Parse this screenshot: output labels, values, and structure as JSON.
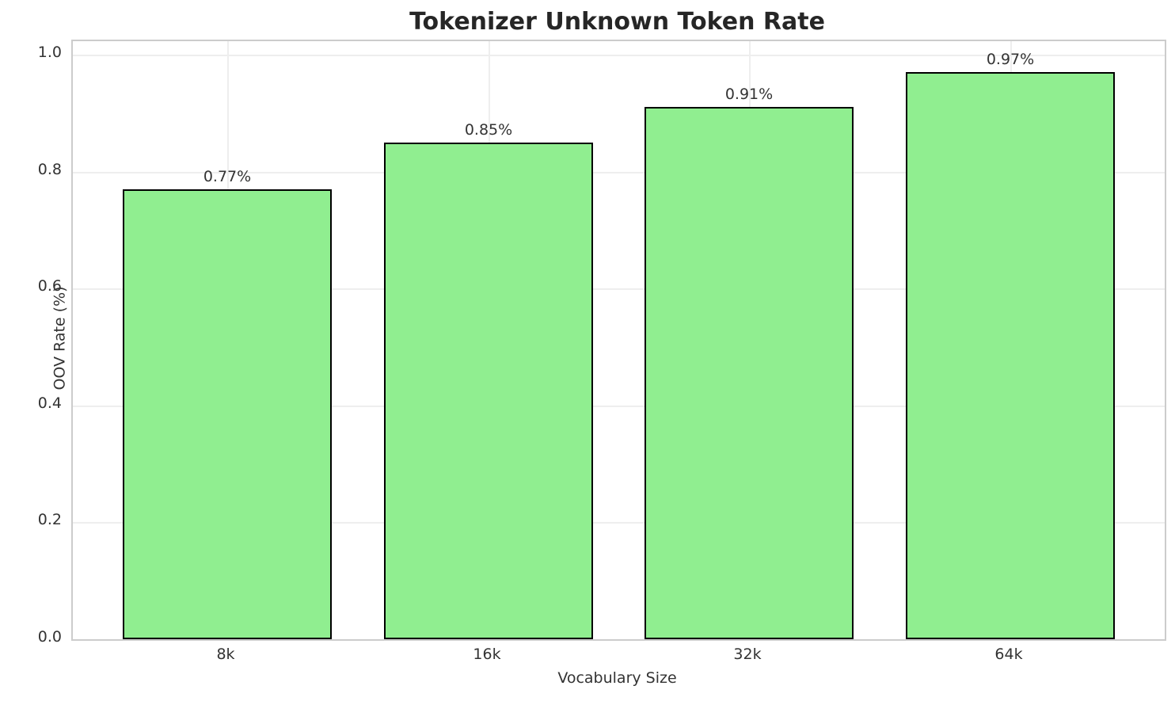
{
  "chart_data": {
    "type": "bar",
    "title": "Tokenizer Unknown Token Rate",
    "xlabel": "Vocabulary Size",
    "ylabel": "OOV Rate (%)",
    "categories": [
      "8k",
      "16k",
      "32k",
      "64k"
    ],
    "values": [
      0.77,
      0.85,
      0.91,
      0.97
    ],
    "value_labels": [
      "0.77%",
      "0.85%",
      "0.91%",
      "0.97%"
    ],
    "y_ticks": [
      0.0,
      0.2,
      0.4,
      0.6,
      0.8,
      1.0
    ],
    "y_tick_labels": [
      "0.0",
      "0.2",
      "0.4",
      "0.6",
      "0.8",
      "1.0"
    ],
    "ylim": [
      0,
      1.023
    ],
    "grid": "on",
    "legend": "none",
    "bar_color": "#90EE90",
    "bar_edge_color": "#000000",
    "grid_color": "#eeeeee",
    "spine_color": "#cccccc",
    "text_color": "#333333",
    "title_color": "#262626"
  }
}
